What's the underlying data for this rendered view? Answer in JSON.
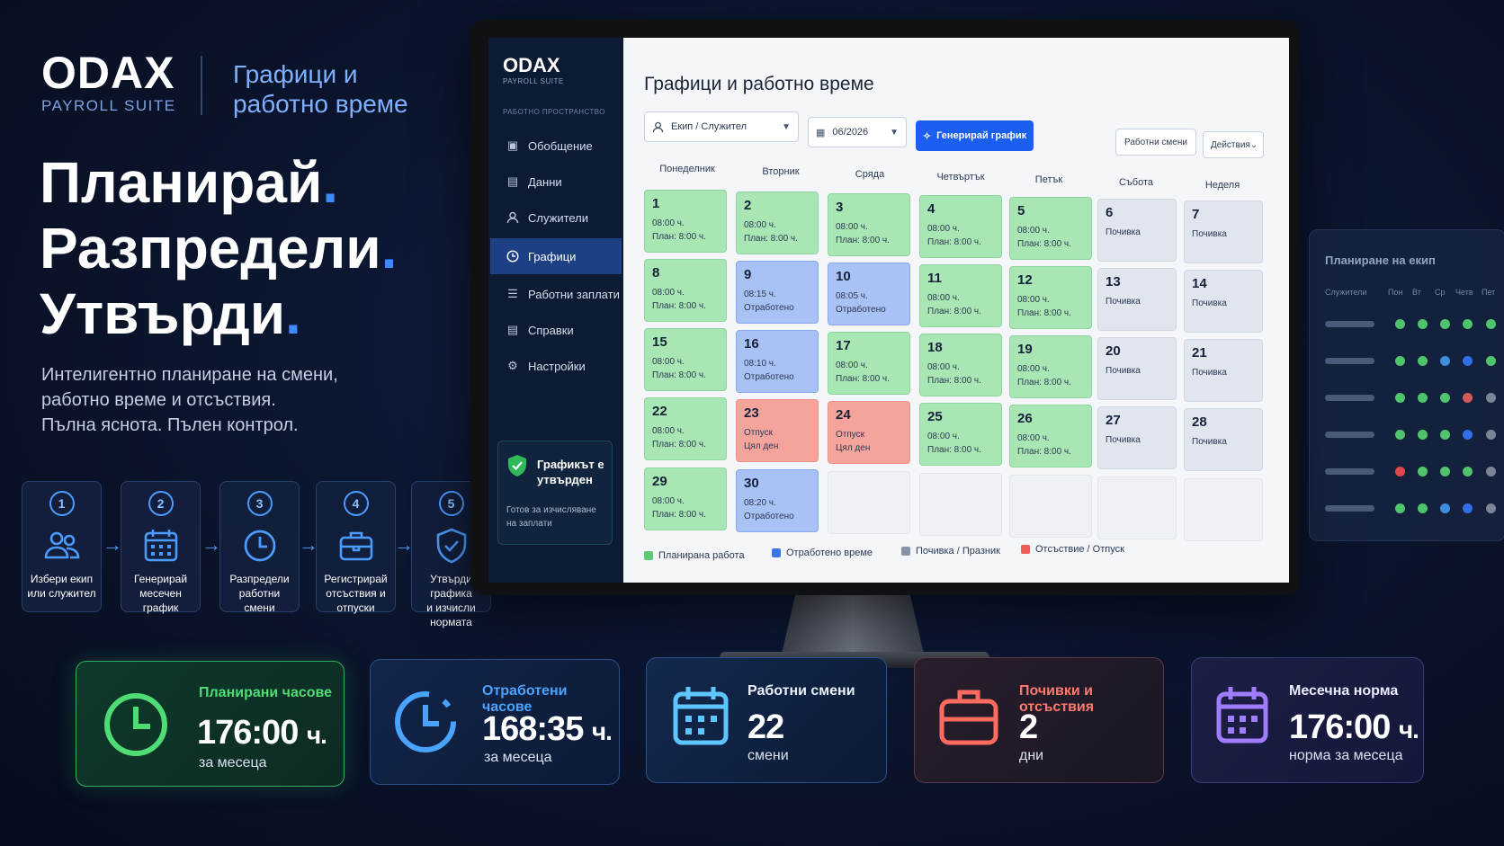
{
  "brand": {
    "name": "ODAX",
    "subtitle": "PAYROLL SUITE",
    "tagline_line1": "Графици и",
    "tagline_line2": "работно време"
  },
  "hero": {
    "line1": "Планирай",
    "line2": "Разпредели",
    "line3": "Утвърди",
    "dot": ".",
    "desc_line1": "Интелигентно планиране на смени,",
    "desc_line2": "работно време и отсъствия.",
    "desc_line3": "Пълна яснота. Пълен контрол."
  },
  "steps": [
    {
      "num": "1",
      "icon": "users-icon",
      "line1": "Избери екип",
      "line2": "или служител"
    },
    {
      "num": "2",
      "icon": "calendar-icon",
      "line1": "Генерирай",
      "line2": "месечен график"
    },
    {
      "num": "3",
      "icon": "clock-icon",
      "line1": "Разпредели",
      "line2": "работни смени"
    },
    {
      "num": "4",
      "icon": "briefcase-icon",
      "line1": "Регистрирай",
      "line2": "отсъствия и отпуски"
    },
    {
      "num": "5",
      "icon": "shield-check-icon",
      "line1": "Утвърди графика",
      "line2": "и изчисли нормата"
    }
  ],
  "app": {
    "logo": "ODAX",
    "logo_sub": "PAYROLL SUITE",
    "section": "РАБОТНО ПРОСТРАНСТВО",
    "nav": [
      {
        "label": "Обобщение",
        "icon": "dashboard-icon",
        "active": false
      },
      {
        "label": "Данни",
        "icon": "data-icon",
        "active": false
      },
      {
        "label": "Служители",
        "icon": "user-icon",
        "active": false
      },
      {
        "label": "Графици",
        "icon": "clock-icon",
        "active": true
      },
      {
        "label": "Работни заплати",
        "icon": "list-icon",
        "active": false
      },
      {
        "label": "Справки",
        "icon": "report-icon",
        "active": false
      },
      {
        "label": "Настройки",
        "icon": "gear-icon",
        "active": false
      }
    ],
    "approved_card": {
      "title": "Графикът е утвърден",
      "text": "Готов за изчисляване на заплати"
    },
    "page_title": "Графици и работно време",
    "filter_team": "Екип / Служител",
    "filter_month": "06/2026",
    "generate_button": "Генерирай график",
    "shifts_button": "Работни смени",
    "actions_button": "Действия",
    "weekdays": [
      "Понеделник",
      "Вторник",
      "Сряда",
      "Четвъртък",
      "Петък",
      "Събота",
      "Неделя"
    ],
    "calendar": [
      [
        {
          "day": "1",
          "type": "planned",
          "l1": "08:00 ч.",
          "l2": "План: 8:00 ч."
        },
        {
          "day": "2",
          "type": "planned",
          "l1": "08:00 ч.",
          "l2": "План: 8:00 ч."
        },
        {
          "day": "3",
          "type": "planned",
          "l1": "08:00 ч.",
          "l2": "План: 8:00 ч."
        },
        {
          "day": "4",
          "type": "planned",
          "l1": "08:00 ч.",
          "l2": "План: 8:00 ч."
        },
        {
          "day": "5",
          "type": "planned",
          "l1": "08:00 ч.",
          "l2": "План: 8:00 ч."
        },
        {
          "day": "6",
          "type": "rest",
          "l1": "Почивка",
          "l2": ""
        },
        {
          "day": "7",
          "type": "rest",
          "l1": "Почивка",
          "l2": ""
        }
      ],
      [
        {
          "day": "8",
          "type": "planned",
          "l1": "08:00 ч.",
          "l2": "План: 8:00 ч."
        },
        {
          "day": "9",
          "type": "worked",
          "l1": "08:15 ч.",
          "l2": "Отработено"
        },
        {
          "day": "10",
          "type": "worked",
          "l1": "08:05 ч.",
          "l2": "Отработено"
        },
        {
          "day": "11",
          "type": "planned",
          "l1": "08:00 ч.",
          "l2": "План: 8:00 ч."
        },
        {
          "day": "12",
          "type": "planned",
          "l1": "08:00 ч.",
          "l2": "План: 8:00 ч."
        },
        {
          "day": "13",
          "type": "rest",
          "l1": "Почивка",
          "l2": ""
        },
        {
          "day": "14",
          "type": "rest",
          "l1": "Почивка",
          "l2": ""
        }
      ],
      [
        {
          "day": "15",
          "type": "planned",
          "l1": "08:00 ч.",
          "l2": "План: 8:00 ч."
        },
        {
          "day": "16",
          "type": "worked",
          "l1": "08:10 ч.",
          "l2": "Отработено"
        },
        {
          "day": "17",
          "type": "planned",
          "l1": "08:00 ч.",
          "l2": "План: 8:00 ч."
        },
        {
          "day": "18",
          "type": "planned",
          "l1": "08:00 ч.",
          "l2": "План: 8:00 ч."
        },
        {
          "day": "19",
          "type": "planned",
          "l1": "08:00 ч.",
          "l2": "План: 8:00 ч."
        },
        {
          "day": "20",
          "type": "rest",
          "l1": "Почивка",
          "l2": ""
        },
        {
          "day": "21",
          "type": "rest",
          "l1": "Почивка",
          "l2": ""
        }
      ],
      [
        {
          "day": "22",
          "type": "planned",
          "l1": "08:00 ч.",
          "l2": "План: 8:00 ч."
        },
        {
          "day": "23",
          "type": "absent",
          "l1": "Отпуск",
          "l2": "Цял ден"
        },
        {
          "day": "24",
          "type": "absent",
          "l1": "Отпуск",
          "l2": "Цял ден"
        },
        {
          "day": "25",
          "type": "planned",
          "l1": "08:00 ч.",
          "l2": "План: 8:00 ч."
        },
        {
          "day": "26",
          "type": "planned",
          "l1": "08:00 ч.",
          "l2": "План: 8:00 ч."
        },
        {
          "day": "27",
          "type": "rest",
          "l1": "Почивка",
          "l2": ""
        },
        {
          "day": "28",
          "type": "rest",
          "l1": "Почивка",
          "l2": ""
        }
      ],
      [
        {
          "day": "29",
          "type": "planned",
          "l1": "08:00 ч.",
          "l2": "План: 8:00 ч."
        },
        {
          "day": "30",
          "type": "worked",
          "l1": "08:20 ч.",
          "l2": "Отработено"
        },
        {
          "day": "",
          "type": "empty",
          "l1": "",
          "l2": ""
        },
        {
          "day": "",
          "type": "empty",
          "l1": "",
          "l2": ""
        },
        {
          "day": "",
          "type": "empty",
          "l1": "",
          "l2": ""
        },
        {
          "day": "",
          "type": "empty",
          "l1": "",
          "l2": ""
        },
        {
          "day": "",
          "type": "empty",
          "l1": "",
          "l2": ""
        }
      ]
    ],
    "legend": [
      {
        "label": "Планирана работа",
        "color": "#5cc977"
      },
      {
        "label": "Отработено време",
        "color": "#3a74e8"
      },
      {
        "label": "Почивка / Празник",
        "color": "#8a93a6"
      },
      {
        "label": "Отсъствие / Отпуск",
        "color": "#ee5d55"
      }
    ]
  },
  "team_panel": {
    "title": "Планиране на екип",
    "col_employees": "Служители",
    "days": [
      "Пон",
      "Вт",
      "Ср",
      "Четв",
      "Пет"
    ],
    "rows": [
      [
        "#4fc46c",
        "#4fc46c",
        "#4fc46c",
        "#4fc46c",
        "#4fc46c"
      ],
      [
        "#4fc46c",
        "#4fc46c",
        "#3f8de0",
        "#2f6fe8",
        "#4fc46c"
      ],
      [
        "#4fc46c",
        "#4fc46c",
        "#4fc46c",
        "#d45b5b",
        "#7b8498"
      ],
      [
        "#4fc46c",
        "#4fc46c",
        "#4fc46c",
        "#2f6fe8",
        "#7b8498"
      ],
      [
        "#e04848",
        "#4fc46c",
        "#4fc46c",
        "#4fc46c",
        "#7b8498"
      ],
      [
        "#4fc46c",
        "#4fc46c",
        "#3f8de0",
        "#2f6fe8",
        "#7b8498"
      ]
    ]
  },
  "stats": [
    {
      "label": "Планирани часове",
      "value": "176:00",
      "unit": "ч.",
      "sub": "за месеца",
      "icon": "clock-icon",
      "accent": "#4fdc74"
    },
    {
      "label": "Отработени часове",
      "value": "168:35",
      "unit": "ч.",
      "sub": "за месеца",
      "icon": "clock-dashed-icon",
      "accent": "#4aa3ff"
    },
    {
      "label": "Работни смени",
      "value": "22",
      "unit": "",
      "sub": "смени",
      "icon": "calendar-icon",
      "accent": "#5ec6ff"
    },
    {
      "label": "Почивки и отсъствия",
      "value": "2",
      "unit": "",
      "sub": "дни",
      "icon": "briefcase-icon",
      "accent": "#ff6b5e"
    },
    {
      "label": "Месечна норма",
      "value": "176:00",
      "unit": "ч.",
      "sub": "норма за месеца",
      "icon": "calendar-icon",
      "accent": "#a07cff"
    }
  ]
}
